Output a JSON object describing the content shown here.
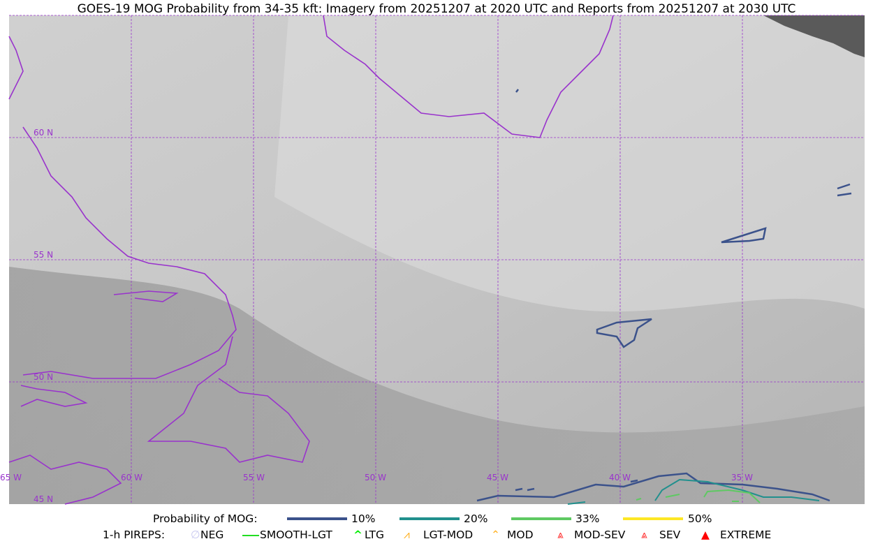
{
  "title": "GOES-19 MOG Probability from 34-35 kft: Imagery from 20251207 at 2020 UTC and Reports from 20251207 at 2030 UTC",
  "map": {
    "lon_labels": [
      "65 W",
      "60 W",
      "55 W",
      "50 W",
      "45 W",
      "40 W",
      "35 W"
    ],
    "lat_labels": [
      "60 N",
      "55 N",
      "50 N",
      "45 N"
    ],
    "grid_color": "#9933cc",
    "coast_color": "#9933cc"
  },
  "legend": {
    "probability_label": "Probability of MOG:",
    "probability_items": [
      {
        "label": "10%",
        "color": "#3b528b"
      },
      {
        "label": "20%",
        "color": "#21908d"
      },
      {
        "label": "33%",
        "color": "#5ec962"
      },
      {
        "label": "50%",
        "color": "#fde725"
      }
    ],
    "pireps_label": "1-h PIREPS:",
    "pirep_items": [
      {
        "label": "NEG",
        "icon": "neg-icon",
        "color": "#c8c8f0"
      },
      {
        "label": "SMOOTH-LGT",
        "icon": "smooth-lgt-line-icon",
        "color": "#22dd22"
      },
      {
        "label": "LTG",
        "icon": "ltg-caret-icon",
        "color": "#00ee00"
      },
      {
        "label": "LGT-MOD",
        "icon": "lgt-mod-icon",
        "color": "#ffb020"
      },
      {
        "label": "MOD",
        "icon": "mod-caret-icon",
        "color": "#ffb020"
      },
      {
        "label": "MOD-SEV",
        "icon": "mod-sev-icon",
        "color": "#ff2020"
      },
      {
        "label": "SEV",
        "icon": "sev-icon",
        "color": "#ff2020"
      },
      {
        "label": "EXTREME",
        "icon": "extreme-icon",
        "color": "#ff0000"
      }
    ]
  }
}
